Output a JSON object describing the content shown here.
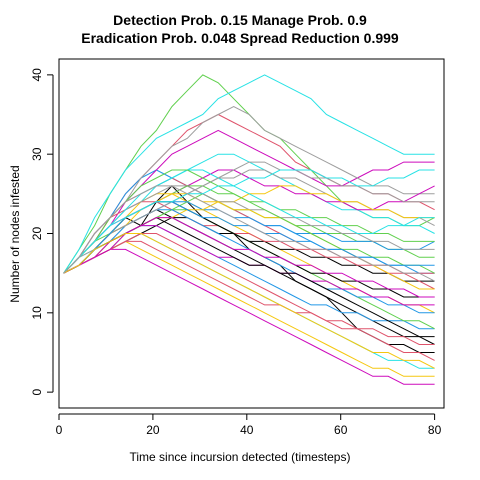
{
  "title_line1": "Detection Prob. 0.15 Manage Prob. 0.9",
  "title_line2": "Eradication Prob. 0.048 Spread Reduction 0.999",
  "chart_data": {
    "type": "line",
    "xlabel": "Time since incursion detected (timesteps)",
    "ylabel": "Number of nodes infested",
    "xlim": [
      0,
      82
    ],
    "ylim": [
      -2,
      42
    ],
    "xticks": [
      0,
      20,
      40,
      60,
      80
    ],
    "yticks": [
      0,
      10,
      20,
      30,
      40
    ],
    "grid": false,
    "legend": "none",
    "series_colors": [
      "#000000",
      "#DF536B",
      "#61D04F",
      "#2297E6",
      "#28E2E5",
      "#CD0BBC",
      "#F5C710",
      "#9E9E9E"
    ],
    "series": [
      {
        "values": [
          15,
          16,
          18,
          20,
          22,
          21,
          24,
          26,
          24,
          22,
          21,
          20,
          18,
          17,
          16,
          14,
          13,
          12,
          10,
          8,
          7,
          6,
          6,
          5,
          5
        ]
      },
      {
        "values": [
          15,
          17,
          19,
          22,
          25,
          27,
          29,
          31,
          33,
          34,
          35,
          34,
          33,
          32,
          31,
          29,
          28,
          27,
          26,
          26,
          25,
          25,
          24,
          24,
          23
        ]
      },
      {
        "values": [
          15,
          18,
          21,
          25,
          28,
          31,
          33,
          36,
          38,
          40,
          39,
          37,
          35,
          33,
          32,
          30,
          28,
          26,
          24,
          23,
          22,
          22,
          21,
          21,
          22
        ]
      },
      {
        "values": [
          15,
          17,
          20,
          22,
          25,
          27,
          28,
          27,
          26,
          25,
          24,
          23,
          22,
          21,
          21,
          20,
          19,
          18,
          18,
          17,
          17,
          16,
          16,
          15,
          15
        ]
      },
      {
        "values": [
          15,
          18,
          22,
          25,
          28,
          30,
          32,
          33,
          34,
          35,
          37,
          38,
          39,
          40,
          39,
          38,
          37,
          35,
          34,
          33,
          32,
          31,
          30,
          30,
          30
        ]
      },
      {
        "values": [
          15,
          17,
          19,
          21,
          24,
          26,
          28,
          30,
          31,
          32,
          33,
          32,
          31,
          30,
          29,
          28,
          27,
          26,
          26,
          27,
          28,
          28,
          29,
          29,
          29
        ]
      },
      {
        "values": [
          15,
          16,
          17,
          18,
          19,
          18,
          17,
          16,
          15,
          14,
          13,
          12,
          11,
          10,
          9,
          8,
          7,
          6,
          5,
          4,
          3,
          3,
          2,
          2,
          2
        ]
      },
      {
        "values": [
          15,
          17,
          20,
          22,
          24,
          27,
          29,
          31,
          32,
          34,
          35,
          36,
          35,
          33,
          32,
          31,
          30,
          29,
          28,
          27,
          26,
          26,
          25,
          25,
          25
        ]
      },
      {
        "values": [
          15,
          16,
          18,
          20,
          21,
          22,
          23,
          22,
          21,
          20,
          19,
          18,
          17,
          16,
          15,
          14,
          13,
          12,
          11,
          10,
          9,
          8,
          7,
          7,
          7
        ]
      },
      {
        "values": [
          15,
          17,
          19,
          22,
          24,
          25,
          26,
          27,
          26,
          25,
          24,
          23,
          22,
          21,
          20,
          19,
          18,
          18,
          17,
          17,
          16,
          16,
          15,
          15,
          15
        ]
      },
      {
        "values": [
          15,
          16,
          17,
          19,
          20,
          21,
          22,
          23,
          24,
          25,
          24,
          23,
          23,
          22,
          22,
          21,
          21,
          20,
          20,
          19,
          19,
          18,
          18,
          17,
          17
        ]
      },
      {
        "values": [
          15,
          16,
          18,
          19,
          20,
          21,
          21,
          20,
          19,
          18,
          17,
          16,
          15,
          14,
          13,
          12,
          11,
          11,
          10,
          10,
          9,
          9,
          9,
          8,
          8
        ]
      },
      {
        "values": [
          15,
          17,
          19,
          21,
          23,
          24,
          26,
          27,
          28,
          29,
          30,
          30,
          29,
          28,
          27,
          26,
          25,
          24,
          23,
          23,
          22,
          22,
          21,
          21,
          20
        ]
      },
      {
        "values": [
          15,
          17,
          19,
          21,
          22,
          23,
          24,
          25,
          26,
          27,
          28,
          28,
          27,
          26,
          26,
          25,
          25,
          24,
          24,
          23,
          23,
          24,
          24,
          25,
          26
        ]
      },
      {
        "values": [
          15,
          16,
          18,
          20,
          22,
          24,
          25,
          25,
          24,
          23,
          22,
          21,
          20,
          19,
          18,
          17,
          16,
          15,
          14,
          13,
          12,
          12,
          11,
          11,
          10
        ]
      },
      {
        "values": [
          15,
          16,
          18,
          19,
          21,
          22,
          23,
          24,
          25,
          26,
          27,
          27,
          28,
          28,
          27,
          27,
          26,
          25,
          24,
          24,
          23,
          23,
          22,
          22,
          21
        ]
      },
      {
        "values": [
          15,
          16,
          17,
          18,
          19,
          20,
          21,
          22,
          22,
          21,
          20,
          20,
          19,
          19,
          18,
          18,
          17,
          17,
          16,
          16,
          15,
          15,
          14,
          14,
          14
        ]
      },
      {
        "values": [
          15,
          17,
          20,
          22,
          23,
          24,
          24,
          23,
          22,
          21,
          21,
          20,
          20,
          19,
          19,
          18,
          18,
          17,
          17,
          16,
          16,
          15,
          15,
          14,
          13
        ]
      },
      {
        "values": [
          15,
          16,
          17,
          18,
          20,
          21,
          22,
          23,
          23,
          22,
          21,
          20,
          19,
          18,
          17,
          16,
          15,
          14,
          13,
          12,
          11,
          10,
          9,
          9,
          8
        ]
      },
      {
        "values": [
          15,
          16,
          18,
          20,
          21,
          22,
          23,
          24,
          24,
          23,
          23,
          22,
          22,
          21,
          21,
          20,
          20,
          20,
          19,
          19,
          19,
          18,
          18,
          18,
          19
        ]
      },
      {
        "values": [
          15,
          17,
          18,
          19,
          20,
          20,
          19,
          18,
          17,
          16,
          15,
          14,
          13,
          12,
          11,
          10,
          9,
          8,
          7,
          6,
          5,
          4,
          4,
          3,
          3
        ]
      },
      {
        "values": [
          15,
          16,
          17,
          18,
          18,
          17,
          16,
          15,
          14,
          13,
          12,
          11,
          10,
          9,
          8,
          7,
          6,
          5,
          4,
          3,
          2,
          2,
          1,
          1,
          1
        ]
      },
      {
        "values": [
          15,
          16,
          17,
          19,
          20,
          21,
          22,
          22,
          23,
          23,
          24,
          24,
          25,
          25,
          26,
          26,
          25,
          25,
          24,
          24,
          23,
          23,
          22,
          22,
          22
        ]
      },
      {
        "values": [
          15,
          17,
          19,
          21,
          23,
          24,
          25,
          26,
          26,
          25,
          24,
          24,
          23,
          23,
          22,
          22,
          21,
          21,
          20,
          20,
          19,
          19,
          18,
          18,
          18
        ]
      },
      {
        "values": [
          15,
          16,
          18,
          20,
          22,
          23,
          24,
          24,
          23,
          22,
          21,
          20,
          19,
          18,
          17,
          16,
          15,
          15,
          14,
          14,
          13,
          13,
          12,
          12,
          12
        ]
      },
      {
        "values": [
          15,
          16,
          17,
          18,
          19,
          20,
          20,
          19,
          18,
          17,
          16,
          15,
          14,
          13,
          12,
          11,
          10,
          9,
          8,
          8,
          7,
          6,
          5,
          5,
          4
        ]
      },
      {
        "values": [
          15,
          17,
          19,
          20,
          22,
          23,
          24,
          25,
          26,
          26,
          25,
          25,
          24,
          24,
          23,
          23,
          22,
          22,
          21,
          21,
          20,
          20,
          19,
          19,
          19
        ]
      },
      {
        "values": [
          15,
          16,
          18,
          19,
          21,
          22,
          23,
          23,
          22,
          21,
          20,
          19,
          18,
          17,
          16,
          15,
          14,
          13,
          13,
          12,
          12,
          11,
          11,
          10,
          10
        ]
      },
      {
        "values": [
          15,
          17,
          19,
          21,
          23,
          25,
          26,
          27,
          28,
          28,
          27,
          26,
          25,
          24,
          23,
          22,
          22,
          21,
          21,
          20,
          20,
          21,
          21,
          22,
          22
        ]
      },
      {
        "values": [
          15,
          16,
          17,
          19,
          20,
          21,
          21,
          20,
          19,
          18,
          17,
          17,
          16,
          16,
          15,
          15,
          14,
          14,
          13,
          13,
          12,
          12,
          11,
          11,
          11
        ]
      },
      {
        "values": [
          15,
          16,
          18,
          20,
          21,
          23,
          24,
          25,
          25,
          24,
          24,
          23,
          23,
          22,
          22,
          21,
          20,
          19,
          18,
          17,
          16,
          15,
          14,
          13,
          13
        ]
      },
      {
        "values": [
          15,
          17,
          18,
          20,
          21,
          22,
          23,
          24,
          25,
          26,
          27,
          28,
          29,
          29,
          28,
          28,
          27,
          27,
          26,
          26,
          25,
          25,
          24,
          24,
          24
        ]
      },
      {
        "values": [
          15,
          16,
          18,
          19,
          20,
          21,
          22,
          21,
          20,
          19,
          18,
          17,
          16,
          16,
          15,
          15,
          14,
          13,
          12,
          11,
          10,
          9,
          8,
          7,
          6
        ]
      },
      {
        "values": [
          15,
          16,
          17,
          18,
          19,
          19,
          18,
          17,
          16,
          15,
          14,
          13,
          12,
          11,
          11,
          10,
          10,
          9,
          9,
          8,
          8,
          7,
          7,
          6,
          6
        ]
      },
      {
        "values": [
          15,
          17,
          19,
          22,
          24,
          26,
          27,
          28,
          28,
          27,
          26,
          25,
          24,
          23,
          22,
          21,
          20,
          19,
          18,
          18,
          17,
          17,
          16,
          16,
          15
        ]
      },
      {
        "values": [
          15,
          16,
          18,
          20,
          22,
          23,
          24,
          24,
          23,
          22,
          22,
          21,
          21,
          20,
          20,
          19,
          19,
          18,
          18,
          17,
          17,
          16,
          16,
          16,
          16
        ]
      },
      {
        "values": [
          15,
          17,
          19,
          21,
          22,
          23,
          24,
          24,
          25,
          25,
          26,
          26,
          27,
          27,
          28,
          28,
          28,
          27,
          27,
          26,
          26,
          27,
          27,
          28,
          28
        ]
      },
      {
        "values": [
          15,
          16,
          17,
          18,
          20,
          21,
          22,
          22,
          21,
          20,
          19,
          18,
          18,
          17,
          17,
          16,
          16,
          15,
          15,
          14,
          14,
          13,
          13,
          12,
          12
        ]
      },
      {
        "values": [
          15,
          16,
          18,
          19,
          20,
          20,
          19,
          18,
          17,
          16,
          15,
          14,
          13,
          12,
          11,
          10,
          9,
          8,
          7,
          6,
          5,
          5,
          4,
          4,
          3
        ]
      },
      {
        "values": [
          15,
          17,
          20,
          22,
          24,
          25,
          26,
          26,
          25,
          24,
          23,
          22,
          21,
          20,
          19,
          19,
          18,
          18,
          17,
          17,
          16,
          16,
          15,
          15,
          14
        ]
      }
    ]
  }
}
